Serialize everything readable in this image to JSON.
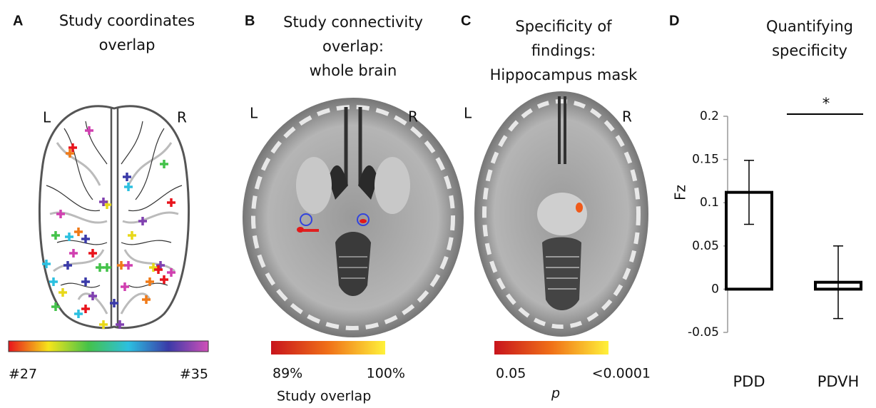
{
  "panels": [
    {
      "letter": "A",
      "title": [
        "Study coordinates",
        "overlap"
      ],
      "left": "L",
      "right": "R",
      "scale_min": "#27",
      "scale_max": "#35"
    },
    {
      "letter": "B",
      "title": [
        "Study connectivity",
        "overlap:",
        "whole brain"
      ],
      "left": "L",
      "right": "R",
      "scale_min": "89%",
      "scale_max": "100%",
      "scale_label": "Study overlap"
    },
    {
      "letter": "C",
      "title": [
        "Specificity of",
        "findings:",
        "Hippocampus mask"
      ],
      "left": "L",
      "right": "R",
      "scale_min": "0.05",
      "scale_max": "<0.0001",
      "scale_label": "p"
    }
  ],
  "chart_data": {
    "type": "bar",
    "letter": "D",
    "title": [
      "Quantifying",
      "specificity"
    ],
    "ylabel": "Fz",
    "categories": [
      "PDD",
      "PDVH"
    ],
    "values": [
      0.112,
      0.008
    ],
    "errors": [
      0.037,
      0.042
    ],
    "color": "#ffffff",
    "edge_color": "#000000",
    "ylim": [
      -0.05,
      0.2
    ],
    "yticks": [
      -0.05,
      0,
      0.05,
      0.1,
      0.15,
      0.2
    ],
    "annotation": "*"
  }
}
